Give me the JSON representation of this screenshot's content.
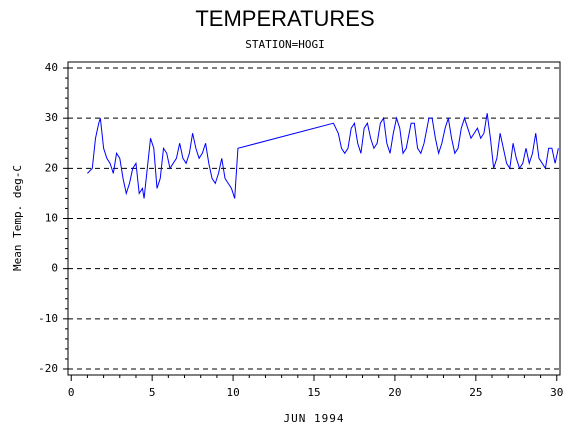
{
  "chart_data": {
    "type": "line",
    "title": "TEMPERATURES",
    "subtitle": "STATION=HOGI",
    "x_label": "JUN 1994",
    "y_label": "Mean Temp. deg-C",
    "color": "#0000ff",
    "grid": true,
    "xlim": [
      -0.2,
      30.2
    ],
    "xticks": [
      0,
      5,
      10,
      15,
      20,
      25,
      30
    ],
    "ylim": [
      -21.2,
      41.2
    ],
    "yticks": [
      -20,
      -10,
      0,
      10,
      20,
      30,
      40
    ],
    "x": [
      1.0,
      1.3,
      1.5,
      1.7,
      1.8,
      2.0,
      2.2,
      2.4,
      2.6,
      2.8,
      3.0,
      3.2,
      3.4,
      3.6,
      3.8,
      4.0,
      4.2,
      4.4,
      4.5,
      4.7,
      4.9,
      5.1,
      5.3,
      5.5,
      5.7,
      5.9,
      6.1,
      6.3,
      6.5,
      6.7,
      6.9,
      7.1,
      7.3,
      7.5,
      7.7,
      7.9,
      8.1,
      8.3,
      8.5,
      8.7,
      8.9,
      9.1,
      9.3,
      9.5,
      9.7,
      9.9,
      10.1,
      10.3,
      16.2,
      16.5,
      16.7,
      16.9,
      17.1,
      17.3,
      17.5,
      17.7,
      17.9,
      18.1,
      18.3,
      18.5,
      18.7,
      18.9,
      19.1,
      19.3,
      19.5,
      19.7,
      19.9,
      20.1,
      20.3,
      20.5,
      20.7,
      21.0,
      21.2,
      21.4,
      21.6,
      21.8,
      22.1,
      22.3,
      22.5,
      22.7,
      22.9,
      23.1,
      23.3,
      23.5,
      23.7,
      23.9,
      24.1,
      24.3,
      24.5,
      24.7,
      24.9,
      25.1,
      25.3,
      25.5,
      25.7,
      25.9,
      26.1,
      26.3,
      26.5,
      26.7,
      26.9,
      27.1,
      27.3,
      27.5,
      27.7,
      27.9,
      28.1,
      28.3,
      28.5,
      28.7,
      28.9,
      29.1,
      29.3,
      29.5,
      29.7,
      29.9,
      30.1
    ],
    "values": [
      19,
      20,
      26,
      29,
      30,
      24,
      22,
      21,
      19,
      23,
      22,
      18,
      15,
      17,
      20,
      21,
      15,
      16,
      14,
      20,
      26,
      24,
      16,
      18,
      24,
      23,
      20,
      21,
      22,
      25,
      22,
      21,
      23,
      27,
      24,
      22,
      23,
      25,
      21,
      18,
      17,
      19,
      22,
      18,
      17,
      16,
      14,
      24,
      29,
      27,
      24,
      23,
      24,
      28,
      29,
      25,
      23,
      28,
      29,
      26,
      24,
      25,
      29,
      30,
      25,
      23,
      27,
      30,
      28,
      23,
      24,
      29,
      29,
      24,
      23,
      25,
      30,
      30,
      26,
      23,
      25,
      28,
      30,
      26,
      23,
      24,
      28,
      30,
      28,
      26,
      27,
      28,
      26,
      27,
      31,
      26,
      20,
      22,
      27,
      24,
      21,
      20,
      25,
      22,
      20,
      21,
      24,
      21,
      23,
      27,
      22,
      21,
      20,
      24,
      24,
      21,
      24
    ]
  }
}
